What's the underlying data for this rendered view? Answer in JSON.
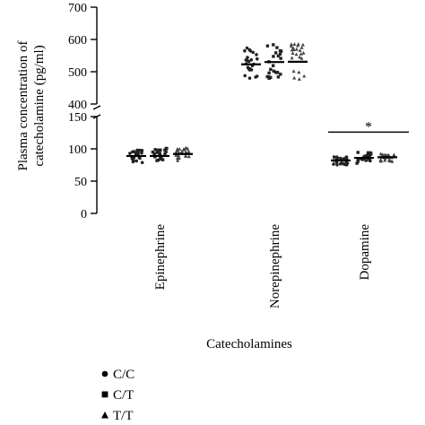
{
  "chart_data": {
    "type": "scatter",
    "title": "",
    "ylabel_lines": [
      "Plasma concentration of",
      "catecholamine (pg/ml)"
    ],
    "xlabel": "Catecholamines",
    "categories": [
      "Epinephrine",
      "Norepinephrine",
      "Dopamine"
    ],
    "axis_break": true,
    "upper_segment": {
      "ylim": [
        400,
        700
      ],
      "ticks": [
        400,
        500,
        600,
        700
      ]
    },
    "lower_segment": {
      "ylim": [
        0,
        150
      ],
      "ticks": [
        0,
        50,
        100,
        150
      ]
    },
    "series": [
      {
        "name": "C/C",
        "marker": "circle",
        "means": [
          89,
          523,
          82
        ],
        "spread": [
          6,
          30,
          4
        ]
      },
      {
        "name": "C/T",
        "marker": "square",
        "means": [
          89,
          530,
          86
        ],
        "spread": [
          7,
          32,
          5
        ]
      },
      {
        "name": "T/T",
        "marker": "triangle",
        "means": [
          92,
          531,
          87
        ],
        "spread": [
          6,
          35,
          4
        ]
      }
    ],
    "annotation": {
      "text": "*",
      "category": "Dopamine"
    },
    "legend_position": "bottom-left",
    "grid": false,
    "colors": {
      "points": "#222222",
      "axis": "#000000"
    }
  }
}
